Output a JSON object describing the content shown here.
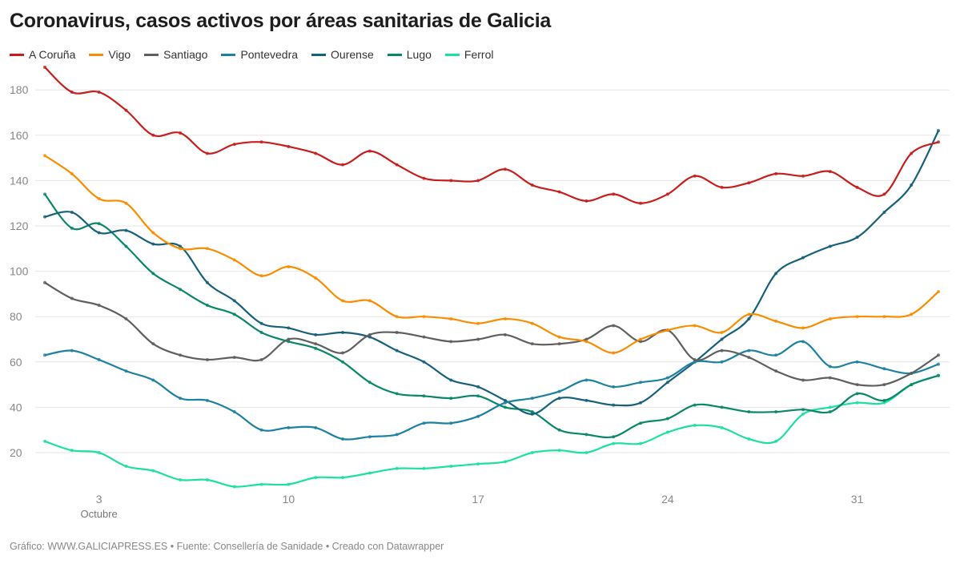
{
  "title": "Coronavirus, casos activos por áreas sanitarias de Galicia",
  "footer": "Gráfico: WWW.GALICIAPRESS.ES • Fuente: Consellería de Sanidade • Creado con Datawrapper",
  "chart_data": {
    "type": "line",
    "title": "Coronavirus, casos activos por áreas sanitarias de Galicia",
    "x": [
      "1 oct",
      "2 oct",
      "3 oct",
      "4 oct",
      "5 oct",
      "6 oct",
      "7 oct",
      "8 oct",
      "9 oct",
      "10 oct",
      "11 oct",
      "12 oct",
      "13 oct",
      "14 oct",
      "15 oct",
      "16 oct",
      "17 oct",
      "18 oct",
      "19 oct",
      "20 oct",
      "21 oct",
      "22 oct",
      "23 oct",
      "24 oct",
      "25 oct",
      "26 oct",
      "27 oct",
      "28 oct",
      "29 oct",
      "30 oct",
      "31 oct",
      "1 nov",
      "2 nov",
      "3 nov"
    ],
    "x_ticks": [
      {
        "index": 2,
        "label": "3",
        "sublabel": "Octubre"
      },
      {
        "index": 9,
        "label": "10"
      },
      {
        "index": 16,
        "label": "17"
      },
      {
        "index": 23,
        "label": "24"
      },
      {
        "index": 30,
        "label": "31"
      }
    ],
    "y_ticks": [
      20,
      40,
      60,
      80,
      100,
      120,
      140,
      160,
      180
    ],
    "ylim": [
      0,
      192
    ],
    "grid": true,
    "legend_position": "top-left",
    "series": [
      {
        "name": "A Coruña",
        "color": "#c71e1d",
        "values": [
          190,
          179,
          179,
          171,
          160,
          161,
          152,
          156,
          157,
          155,
          152,
          147,
          153,
          147,
          141,
          140,
          140,
          145,
          138,
          135,
          131,
          134,
          130,
          134,
          142,
          137,
          139,
          143,
          142,
          144,
          137,
          134,
          152,
          157
        ]
      },
      {
        "name": "Vigo",
        "color": "#fa8c00",
        "values": [
          151,
          143,
          132,
          130,
          117,
          110,
          110,
          105,
          98,
          102,
          97,
          87,
          87,
          80,
          80,
          79,
          77,
          79,
          77,
          71,
          69,
          64,
          70,
          74,
          76,
          73,
          81,
          78,
          75,
          79,
          80,
          80,
          81,
          91
        ]
      },
      {
        "name": "Santiago",
        "color": "#5f5f5f",
        "values": [
          95,
          88,
          85,
          79,
          68,
          63,
          61,
          62,
          61,
          70,
          68,
          64,
          72,
          73,
          71,
          69,
          70,
          72,
          68,
          68,
          70,
          76,
          69,
          74,
          61,
          65,
          62,
          56,
          52,
          53,
          50,
          50,
          55,
          63
        ]
      },
      {
        "name": "Pontevedra",
        "color": "#1d81a2",
        "values": [
          63,
          65,
          61,
          56,
          52,
          44,
          43,
          38,
          30,
          31,
          31,
          26,
          27,
          28,
          33,
          33,
          36,
          42,
          44,
          47,
          52,
          49,
          51,
          53,
          60,
          60,
          65,
          63,
          69,
          58,
          60,
          57,
          55,
          59
        ]
      },
      {
        "name": "Ourense",
        "color": "#15607a",
        "values": [
          124,
          126,
          117,
          118,
          112,
          111,
          95,
          87,
          77,
          75,
          72,
          73,
          71,
          65,
          60,
          52,
          49,
          43,
          37,
          44,
          43,
          41,
          42,
          51,
          60,
          70,
          79,
          99,
          106,
          111,
          115,
          126,
          138,
          162
        ]
      },
      {
        "name": "Lugo",
        "color": "#09876b",
        "values": [
          134,
          119,
          121,
          111,
          99,
          92,
          85,
          81,
          73,
          69,
          66,
          60,
          51,
          46,
          45,
          44,
          45,
          40,
          38,
          30,
          28,
          27,
          33,
          35,
          41,
          40,
          38,
          38,
          39,
          38,
          46,
          43,
          50,
          54
        ]
      },
      {
        "name": "Ferrol",
        "color": "#1ce0a3",
        "values": [
          25,
          21,
          20,
          14,
          12,
          8,
          8,
          5,
          6,
          6,
          9,
          9,
          11,
          13,
          13,
          14,
          15,
          16,
          20,
          21,
          20,
          24,
          24,
          29,
          32,
          31,
          26,
          25,
          37,
          40,
          42,
          42,
          50,
          54
        ]
      }
    ]
  }
}
